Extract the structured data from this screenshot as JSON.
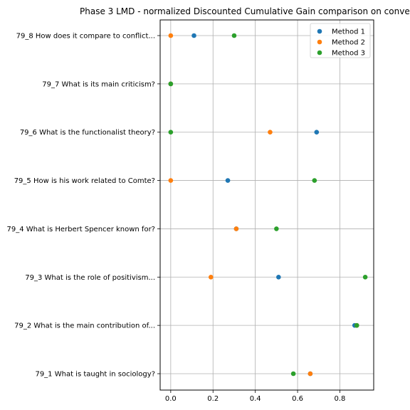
{
  "chart_data": {
    "type": "scatter",
    "title": "Phase 3 LMD - normalized Discounted Cumulative Gain comparison on conve",
    "xlabel": "",
    "ylabel": "",
    "xlim": [
      -0.05,
      0.96
    ],
    "x_ticks": [
      {
        "value": 0.0,
        "label": "0.0"
      },
      {
        "value": 0.2,
        "label": "0.2"
      },
      {
        "value": 0.4,
        "label": "0.4"
      },
      {
        "value": 0.6,
        "label": "0.6"
      },
      {
        "value": 0.8,
        "label": "0.8"
      }
    ],
    "categories": [
      "79_1 What is taught in sociology?",
      "79_2 What is the main contribution of...",
      "79_3 What is the role of positivism...",
      "79_4 What is Herbert Spencer known for?",
      "79_5 How is his work related to Comte?",
      "79_6 What is the functionalist theory?",
      "79_7 What is its main criticism?",
      "79_8 How does it compare to conflict..."
    ],
    "series": [
      {
        "name": "Method 1",
        "color": "#1f77b4",
        "values": [
          0.66,
          0.87,
          0.51,
          0.31,
          0.27,
          0.69,
          0.0,
          0.11
        ]
      },
      {
        "name": "Method 2",
        "color": "#ff7f0e",
        "values": [
          0.66,
          0.88,
          0.19,
          0.31,
          0.0,
          0.47,
          0.0,
          0.0
        ]
      },
      {
        "name": "Method 3",
        "color": "#2ca02c",
        "values": [
          0.58,
          0.88,
          0.92,
          0.5,
          0.68,
          0.0,
          0.0,
          0.3
        ]
      }
    ],
    "grid": true,
    "legend_position": "top-right"
  }
}
